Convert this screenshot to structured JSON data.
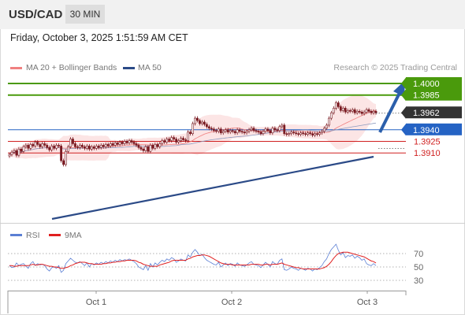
{
  "header": {
    "symbol": "USD/CAD",
    "timeframe": "30 MIN",
    "datetime": "Friday, October 3, 2025 1:51:59 AM CET"
  },
  "legend": {
    "ma20": {
      "label": "MA 20 + Bollinger Bands",
      "color": "#f08080"
    },
    "ma50": {
      "label": "MA 50",
      "color": "#2b4a87"
    },
    "credit": "Research © 2025 Trading Central",
    "rsi": {
      "label": "RSI",
      "color": "#5b7fd4"
    },
    "rsi_ma": {
      "label": "9MA",
      "color": "#e02020"
    }
  },
  "chart_data": [
    {
      "type": "candlestick",
      "symbol": "USD/CAD",
      "x_ticks": [
        "Oct 1",
        "Oct 2",
        "Oct 3"
      ],
      "levels": [
        {
          "value": 1.4,
          "label": "1.4000",
          "color": "#4a9a0c",
          "kind": "resistance"
        },
        {
          "value": 1.3985,
          "label": "1.3985",
          "color": "#4a9a0c",
          "kind": "resistance"
        },
        {
          "value": 1.3962,
          "label": "1.3962",
          "color": "#333333",
          "kind": "last-price"
        },
        {
          "value": 1.394,
          "label": "1.3940",
          "color": "#2563c4",
          "kind": "pivot"
        },
        {
          "value": 1.3925,
          "label": "1.3925",
          "color": "#d02020",
          "kind": "support"
        },
        {
          "value": 1.391,
          "label": "1.3910",
          "color": "#d02020",
          "kind": "support"
        }
      ],
      "closes": [
        1.3908,
        1.3911,
        1.3913,
        1.3907,
        1.3915,
        1.3912,
        1.3918,
        1.392,
        1.3916,
        1.3921,
        1.3919,
        1.3924,
        1.3921,
        1.3918,
        1.3922,
        1.392,
        1.3917,
        1.3914,
        1.3919,
        1.3916,
        1.392,
        1.3919,
        1.39,
        1.3895,
        1.3912,
        1.3918,
        1.3928,
        1.3922,
        1.3918,
        1.3917,
        1.392,
        1.3918,
        1.3916,
        1.3919,
        1.3915,
        1.3918,
        1.3916,
        1.3919,
        1.3917,
        1.392,
        1.3918,
        1.3921,
        1.3919,
        1.3922,
        1.392,
        1.3923,
        1.3921,
        1.3924,
        1.3922,
        1.3925,
        1.3923,
        1.3926,
        1.3924,
        1.3922,
        1.392,
        1.3917,
        1.3915,
        1.3913,
        1.3918,
        1.3912,
        1.392,
        1.3916,
        1.3921,
        1.3918,
        1.3922,
        1.3926,
        1.3924,
        1.3928,
        1.3926,
        1.393,
        1.3928,
        1.3924,
        1.3926,
        1.3929,
        1.3927,
        1.3926,
        1.3937,
        1.3935,
        1.3948,
        1.3955,
        1.3952,
        1.3948,
        1.395,
        1.3947,
        1.3944,
        1.3942,
        1.3941,
        1.3939,
        1.3938,
        1.3941,
        1.3936,
        1.3938,
        1.394,
        1.3937,
        1.3939,
        1.3938,
        1.3936,
        1.394,
        1.3938,
        1.3937,
        1.3936,
        1.3938,
        1.394,
        1.3942,
        1.3939,
        1.3938,
        1.3937,
        1.3935,
        1.3938,
        1.3941,
        1.3939,
        1.3936,
        1.3942,
        1.394,
        1.3939,
        1.3944,
        1.3946,
        1.3935,
        1.3934,
        1.3935,
        1.3937,
        1.3936,
        1.3935,
        1.3934,
        1.3936,
        1.3935,
        1.3934,
        1.3936,
        1.3935,
        1.3933,
        1.3935,
        1.3934,
        1.3936,
        1.3938,
        1.3942,
        1.3946,
        1.3955,
        1.3962,
        1.3968,
        1.3975,
        1.397,
        1.3965,
        1.3968,
        1.3963,
        1.3965,
        1.3964,
        1.3966,
        1.3962,
        1.3964,
        1.3963,
        1.3961,
        1.3963,
        1.3966,
        1.3964,
        1.3962,
        1.3964,
        1.3962
      ]
    },
    {
      "type": "line",
      "name": "RSI",
      "y_ticks": [
        70,
        50,
        30
      ],
      "rsi": [
        52,
        49,
        50,
        56,
        52,
        54,
        55,
        51,
        48,
        55,
        58,
        52,
        55,
        53,
        54,
        52,
        47,
        44,
        49,
        50,
        48,
        52,
        42,
        45,
        55,
        59,
        63,
        60,
        57,
        56,
        58,
        55,
        52,
        56,
        50,
        55,
        53,
        56,
        54,
        57,
        55,
        58,
        56,
        59,
        57,
        60,
        58,
        61,
        59,
        61,
        60,
        62,
        60,
        58,
        55,
        50,
        48,
        46,
        52,
        45,
        55,
        50,
        56,
        53,
        57,
        60,
        58,
        62,
        60,
        64,
        62,
        57,
        59,
        62,
        60,
        59,
        68,
        65,
        72,
        76,
        72,
        67,
        69,
        64,
        60,
        58,
        56,
        54,
        53,
        57,
        50,
        53,
        56,
        52,
        55,
        54,
        51,
        56,
        53,
        52,
        51,
        53,
        56,
        58,
        54,
        53,
        52,
        49,
        53,
        57,
        54,
        50,
        58,
        55,
        54,
        60,
        62,
        46,
        45,
        47,
        50,
        48,
        47,
        45,
        48,
        47,
        45,
        48,
        47,
        44,
        47,
        46,
        49,
        52,
        58,
        62,
        70,
        76,
        80,
        84,
        75,
        68,
        72,
        64,
        67,
        66,
        68,
        63,
        66,
        64,
        60,
        62,
        55,
        53,
        52,
        55,
        52
      ],
      "ma9": [
        52,
        52,
        51,
        51,
        52,
        52,
        52,
        52,
        52,
        53,
        54,
        53,
        53,
        54,
        54,
        53,
        52,
        51,
        51,
        50,
        50,
        49,
        48,
        48,
        49,
        50,
        52,
        53,
        55,
        56,
        57,
        57,
        57,
        56,
        55,
        55,
        54,
        54,
        54,
        54,
        55,
        55,
        56,
        56,
        57,
        57,
        58,
        58,
        59,
        59,
        60,
        60,
        60,
        60,
        59,
        57,
        56,
        54,
        53,
        52,
        51,
        51,
        51,
        51,
        53,
        54,
        55,
        56,
        57,
        59,
        60,
        60,
        60,
        60,
        60,
        60,
        62,
        63,
        65,
        66,
        67,
        67,
        68,
        68,
        67,
        66,
        64,
        62,
        60,
        58,
        56,
        55,
        54,
        54,
        54,
        53,
        53,
        53,
        53,
        53,
        53,
        53,
        53,
        54,
        54,
        54,
        54,
        53,
        53,
        54,
        54,
        53,
        54,
        54,
        54,
        55,
        56,
        54,
        53,
        52,
        51,
        50,
        49,
        49,
        48,
        47,
        47,
        47,
        47,
        47,
        47,
        47,
        47,
        48,
        49,
        51,
        54,
        58,
        63,
        67,
        70,
        71,
        72,
        72,
        72,
        71,
        70,
        69,
        68,
        67,
        66,
        65,
        63,
        61,
        59,
        58,
        56
      ]
    }
  ]
}
